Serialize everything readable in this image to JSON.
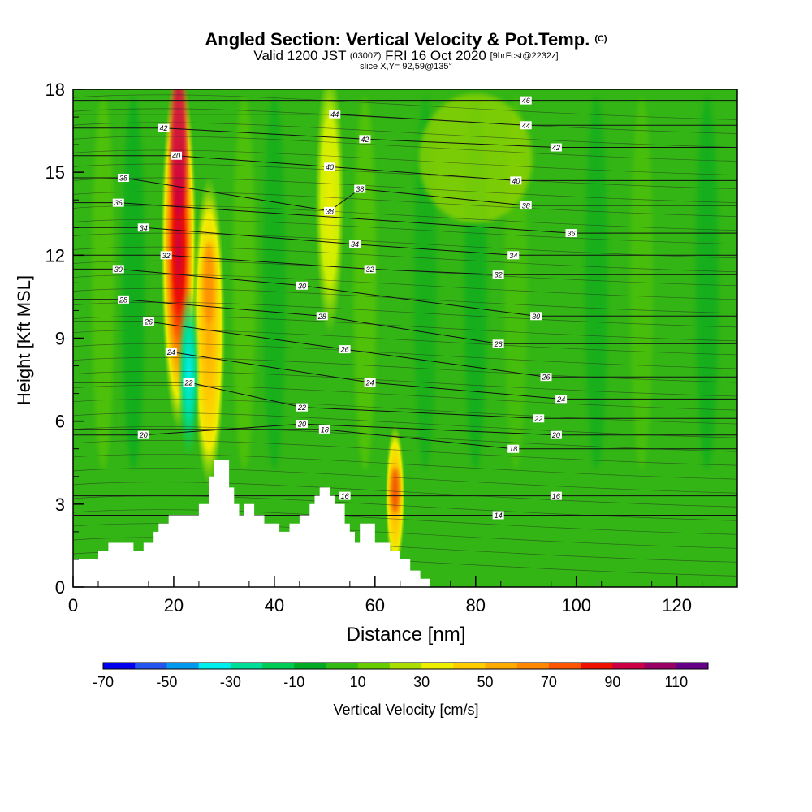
{
  "chart_data": {
    "type": "heatmap",
    "title": "Angled Section: Vertical Velocity & Pot.Temp.",
    "title_units": "(C)",
    "subtitle_main_1": "Valid 1200 JST",
    "subtitle_small_1": "(0300Z)",
    "subtitle_main_2": "FRI 16 Oct 2020",
    "subtitle_small_2": "[9hrFcst@2232z]",
    "slice_info": "slice X,Y= 92,59@135°",
    "xlabel": "Distance [nm]",
    "ylabel": "Height [Kft MSL]",
    "xlim": [
      0,
      132
    ],
    "ylim": [
      0,
      18
    ],
    "x_ticks": [
      "0",
      "20",
      "40",
      "60",
      "80",
      "100",
      "120"
    ],
    "x_tick_values": [
      0,
      20,
      40,
      60,
      80,
      100,
      120
    ],
    "y_ticks": [
      "0",
      "3",
      "6",
      "9",
      "12",
      "15",
      "18"
    ],
    "y_tick_values": [
      0,
      3,
      6,
      9,
      12,
      15,
      18
    ],
    "colorbar": {
      "label": "Vertical Velocity [cm/s]",
      "min": -70,
      "max": 120,
      "tick_labels": [
        "-70",
        "-50",
        "-30",
        "-10",
        "10",
        "30",
        "50",
        "70",
        "90",
        "110"
      ],
      "tick_values": [
        -70,
        -50,
        -30,
        -10,
        10,
        30,
        50,
        70,
        90,
        110
      ],
      "colors": [
        "#0000ee",
        "#2255ee",
        "#0099ee",
        "#00eeee",
        "#00dd99",
        "#00cc55",
        "#00aa22",
        "#33bb11",
        "#66cc00",
        "#aadd00",
        "#eeee00",
        "#ffcc00",
        "#ffaa00",
        "#ff8800",
        "#ff5500",
        "#ee1100",
        "#cc0044",
        "#990066",
        "#660088"
      ]
    },
    "background_updraft_color": "#33b515",
    "features": [
      {
        "type": "updraft",
        "x": 21,
        "y_bottom": 6.5,
        "y_top": 18,
        "max": 110
      },
      {
        "type": "updraft",
        "x": 27,
        "y_bottom": 4.5,
        "y_top": 14,
        "max": 55
      },
      {
        "type": "downdraft",
        "x": 23,
        "y_bottom": 5.5,
        "y_top": 10,
        "min": -35
      },
      {
        "type": "updraft",
        "x": 51,
        "y_bottom": 10,
        "y_top": 18,
        "max": 30
      },
      {
        "type": "updraft",
        "x": 64,
        "y_bottom": 1.5,
        "y_top": 5,
        "max": 60
      }
    ],
    "theta_contour_labels": [
      {
        "x": 90,
        "y": 17.6,
        "label": "46"
      },
      {
        "x": 52,
        "y": 17.1,
        "label": "44"
      },
      {
        "x": 90,
        "y": 16.7,
        "label": "44"
      },
      {
        "x": 18,
        "y": 16.6,
        "label": "42"
      },
      {
        "x": 58,
        "y": 16.2,
        "label": "42"
      },
      {
        "x": 96,
        "y": 15.9,
        "label": "42"
      },
      {
        "x": 20.5,
        "y": 15.6,
        "label": "40"
      },
      {
        "x": 51,
        "y": 15.2,
        "label": "40"
      },
      {
        "x": 88,
        "y": 14.7,
        "label": "40"
      },
      {
        "x": 10,
        "y": 14.8,
        "label": "38"
      },
      {
        "x": 57,
        "y": 14.4,
        "label": "38"
      },
      {
        "x": 90,
        "y": 13.8,
        "label": "38"
      },
      {
        "x": 9,
        "y": 13.9,
        "label": "36"
      },
      {
        "x": 51,
        "y": 13.6,
        "label": "38"
      },
      {
        "x": 99,
        "y": 12.8,
        "label": "36"
      },
      {
        "x": 14,
        "y": 13.0,
        "label": "34"
      },
      {
        "x": 56,
        "y": 12.4,
        "label": "34"
      },
      {
        "x": 87.5,
        "y": 12.0,
        "label": "34"
      },
      {
        "x": 18.5,
        "y": 12.0,
        "label": "32"
      },
      {
        "x": 59,
        "y": 11.5,
        "label": "32"
      },
      {
        "x": 84.5,
        "y": 11.3,
        "label": "32"
      },
      {
        "x": 9,
        "y": 11.5,
        "label": "30"
      },
      {
        "x": 45.5,
        "y": 10.9,
        "label": "30"
      },
      {
        "x": 92,
        "y": 9.8,
        "label": "30"
      },
      {
        "x": 10,
        "y": 10.4,
        "label": "28"
      },
      {
        "x": 49.5,
        "y": 9.8,
        "label": "28"
      },
      {
        "x": 84.5,
        "y": 8.8,
        "label": "28"
      },
      {
        "x": 15,
        "y": 9.6,
        "label": "26"
      },
      {
        "x": 54,
        "y": 8.6,
        "label": "26"
      },
      {
        "x": 94,
        "y": 7.6,
        "label": "26"
      },
      {
        "x": 19.5,
        "y": 8.5,
        "label": "24"
      },
      {
        "x": 59,
        "y": 7.4,
        "label": "24"
      },
      {
        "x": 97,
        "y": 6.8,
        "label": "24"
      },
      {
        "x": 23,
        "y": 7.4,
        "label": "22"
      },
      {
        "x": 45.5,
        "y": 6.5,
        "label": "22"
      },
      {
        "x": 92.5,
        "y": 6.1,
        "label": "22"
      },
      {
        "x": 14,
        "y": 5.5,
        "label": "20"
      },
      {
        "x": 45.5,
        "y": 5.9,
        "label": "20"
      },
      {
        "x": 96,
        "y": 5.5,
        "label": "20"
      },
      {
        "x": 50,
        "y": 5.7,
        "label": "18"
      },
      {
        "x": 87.5,
        "y": 5.0,
        "label": "18"
      },
      {
        "x": 54,
        "y": 3.3,
        "label": "16"
      },
      {
        "x": 96,
        "y": 3.3,
        "label": "16"
      },
      {
        "x": 84.5,
        "y": 2.6,
        "label": "14"
      }
    ],
    "terrain": [
      [
        0,
        1.0
      ],
      [
        5,
        1.0
      ],
      [
        5,
        1.3
      ],
      [
        7,
        1.3
      ],
      [
        7,
        1.6
      ],
      [
        12,
        1.6
      ],
      [
        12,
        1.3
      ],
      [
        14,
        1.3
      ],
      [
        14,
        1.6
      ],
      [
        16,
        1.6
      ],
      [
        16,
        2.0
      ],
      [
        17,
        2.0
      ],
      [
        17,
        2.3
      ],
      [
        19,
        2.3
      ],
      [
        19,
        2.6
      ],
      [
        25,
        2.6
      ],
      [
        25,
        3.0
      ],
      [
        27,
        3.0
      ],
      [
        27,
        4.0
      ],
      [
        28,
        4.0
      ],
      [
        28,
        4.6
      ],
      [
        31,
        4.6
      ],
      [
        31,
        3.6
      ],
      [
        32,
        3.6
      ],
      [
        32,
        3.0
      ],
      [
        33,
        3.0
      ],
      [
        33,
        2.6
      ],
      [
        34,
        2.6
      ],
      [
        34,
        3.0
      ],
      [
        36,
        3.0
      ],
      [
        36,
        2.6
      ],
      [
        38,
        2.6
      ],
      [
        38,
        2.3
      ],
      [
        41,
        2.3
      ],
      [
        41,
        2.0
      ],
      [
        43,
        2.0
      ],
      [
        43,
        2.3
      ],
      [
        45,
        2.3
      ],
      [
        45,
        2.6
      ],
      [
        47,
        2.6
      ],
      [
        47,
        3.0
      ],
      [
        48,
        3.0
      ],
      [
        48,
        3.3
      ],
      [
        49,
        3.3
      ],
      [
        49,
        3.6
      ],
      [
        51,
        3.6
      ],
      [
        51,
        3.3
      ],
      [
        52,
        3.3
      ],
      [
        52,
        3.0
      ],
      [
        54,
        3.0
      ],
      [
        54,
        2.3
      ],
      [
        55,
        2.3
      ],
      [
        55,
        2.0
      ],
      [
        56,
        2.0
      ],
      [
        56,
        1.6
      ],
      [
        57,
        1.6
      ],
      [
        57,
        2.3
      ],
      [
        60,
        2.3
      ],
      [
        60,
        1.6
      ],
      [
        63,
        1.6
      ],
      [
        63,
        1.3
      ],
      [
        65,
        1.3
      ],
      [
        65,
        1.0
      ],
      [
        67,
        1.0
      ],
      [
        67,
        0.6
      ],
      [
        69,
        0.6
      ],
      [
        69,
        0.3
      ],
      [
        71,
        0.3
      ],
      [
        71,
        0.0
      ],
      [
        132,
        0.0
      ]
    ]
  }
}
